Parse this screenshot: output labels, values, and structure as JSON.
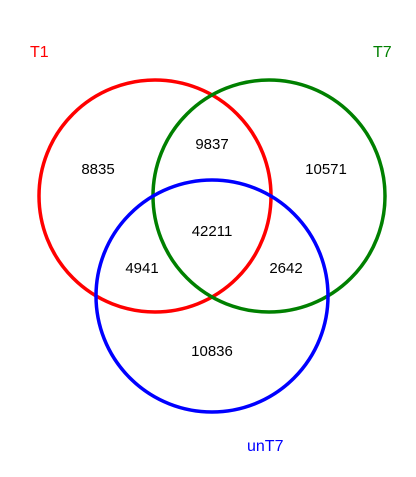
{
  "sets": [
    {
      "name": "T1",
      "color": "#ff0000"
    },
    {
      "name": "T7",
      "color": "#008000"
    },
    {
      "name": "unT7",
      "color": "#0000ff"
    }
  ],
  "regions": {
    "T1_only": "8835",
    "T1_T7": "9837",
    "T7_only": "10571",
    "all_three": "42211",
    "T1_unT7": "4941",
    "T7_unT7": "2642",
    "unT7_only": "10836"
  }
}
